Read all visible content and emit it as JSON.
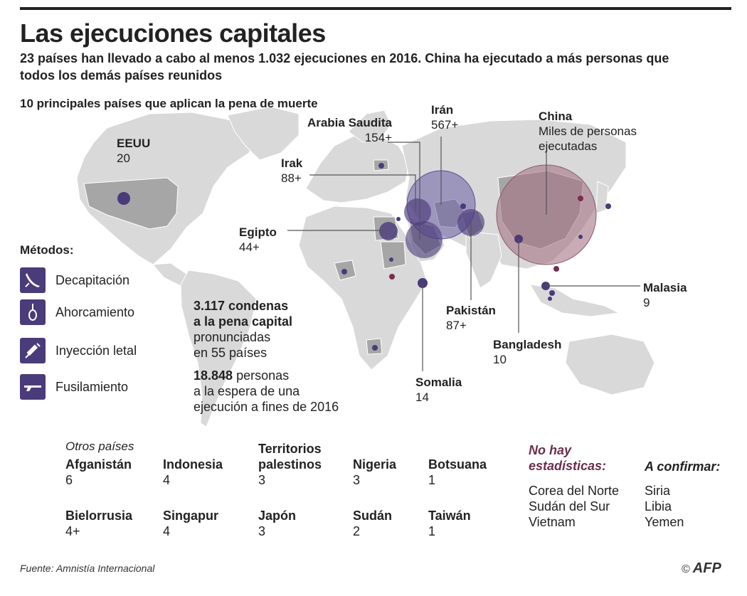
{
  "title": "Las ejecuciones capitales",
  "subtitle": "23 países han llevado a cabo al menos 1.032 ejecuciones en 2016. China ha ejecutado a más personas que todos los demás países reunidos",
  "map_title": "10 principales países que aplican la pena de muerte",
  "top_countries": [
    {
      "name": "EEUU",
      "value": "20"
    },
    {
      "name": "Arabia Saudita",
      "value": "154+"
    },
    {
      "name": "Irán",
      "value": "567+"
    },
    {
      "name": "Irak",
      "value": "88+"
    },
    {
      "name": "Egipto",
      "value": "44+"
    },
    {
      "name": "China",
      "value": "Miles de personas ejecutadas"
    },
    {
      "name": "Malasia",
      "value": "9"
    },
    {
      "name": "Pakistán",
      "value": "87+"
    },
    {
      "name": "Bangladesh",
      "value": "10"
    },
    {
      "name": "Somalia",
      "value": "14"
    }
  ],
  "china_note_line1": "Miles de personas",
  "china_note_line2": "ejecutadas",
  "methods_title": "Métodos:",
  "methods": [
    "Decapitación",
    "Ahorcamiento",
    "Inyección letal",
    "Fusilamiento"
  ],
  "stats": {
    "sentences_bold": "3.117 condenas",
    "sentences_bold2": "a la pena capital",
    "sentences_rest1": "pronunciadas",
    "sentences_rest2": "en 55 países",
    "waiting_num": "18.848",
    "waiting_rest1": " personas",
    "waiting_rest2": "a la espera de una",
    "waiting_rest3": "ejecución a fines de 2016"
  },
  "others_title": "Otros países",
  "others": [
    {
      "name": "Afganistán",
      "value": "6"
    },
    {
      "name": "Indonesia",
      "value": "4"
    },
    {
      "name": "Territorios palestinos",
      "value": "3"
    },
    {
      "name": "Nigeria",
      "value": "3"
    },
    {
      "name": "Botsuana",
      "value": "1"
    },
    {
      "name": "Bielorrusia",
      "value": "4+"
    },
    {
      "name": "Singapur",
      "value": "4"
    },
    {
      "name": "Japón",
      "value": "3"
    },
    {
      "name": "Sudán",
      "value": "2"
    },
    {
      "name": "Taiwán",
      "value": "1"
    }
  ],
  "no_stats_title_line1": "No hay",
  "no_stats_title_line2": "estadísticas:",
  "no_stats": [
    "Corea del Norte",
    "Sudán del Sur",
    "Vietnam"
  ],
  "to_confirm_title": "A confirmar:",
  "to_confirm": [
    "Siria",
    "Libia",
    "Yemen"
  ],
  "source": "Fuente: Amnistía Internacional",
  "credit": "AFP",
  "colors": {
    "land": "#d9d9d9",
    "highlight": "#a6a6a6",
    "circle": "#4a3b7a",
    "china": "#a57385",
    "maroon": "#7a2b4e"
  }
}
